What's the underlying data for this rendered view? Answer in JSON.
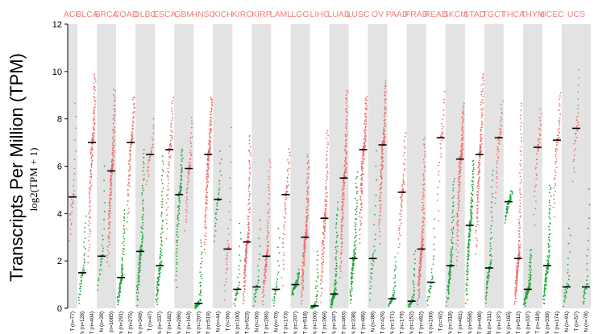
{
  "chart_data": {
    "type": "scatter",
    "title": "",
    "ylabel": "Transcripts Per Million (TPM)",
    "ylabel_sub": "log2(TPM + 1)",
    "ylim": [
      0,
      12
    ],
    "yticks": [
      0,
      2,
      4,
      6,
      8,
      10,
      12
    ],
    "colors": {
      "tumor": "#ee6a6a",
      "normal": "#1fa33a",
      "median": "#000000",
      "band": "#e3e3e3",
      "cancer_label": "#f08080"
    },
    "cancers": [
      {
        "name": "ACC",
        "groups": [
          {
            "label": "T (n=77)",
            "kind": "T",
            "n": 77,
            "median": 4.7,
            "min": 2.5,
            "max": 9.0
          }
        ]
      },
      {
        "name": "BLCA",
        "groups": [
          {
            "label": "N (n=128)",
            "kind": "N",
            "n": 128,
            "median": 1.5,
            "min": 0.0,
            "max": 4.0
          },
          {
            "label": "T (n=404)",
            "kind": "T",
            "n": 404,
            "median": 7.0,
            "min": 1.5,
            "max": 10.0
          }
        ]
      },
      {
        "name": "BRCA",
        "groups": [
          {
            "label": "N (n=28)",
            "kind": "N",
            "n": 28,
            "median": 2.2,
            "min": 0.5,
            "max": 6.3
          },
          {
            "label": "T (n=1085)",
            "kind": "T",
            "n": 1085,
            "median": 5.8,
            "min": 1.5,
            "max": 9.3
          }
        ]
      },
      {
        "name": "COAD",
        "groups": [
          {
            "label": "N (n=291)",
            "kind": "N",
            "n": 291,
            "median": 1.3,
            "min": 0.0,
            "max": 4.2
          },
          {
            "label": "T (n=275)",
            "kind": "T",
            "n": 275,
            "median": 7.0,
            "min": 3.0,
            "max": 9.0
          }
        ]
      },
      {
        "name": "DLBC",
        "groups": [
          {
            "label": "N (n=349)",
            "kind": "N",
            "n": 349,
            "median": 2.4,
            "min": 0.0,
            "max": 6.8
          },
          {
            "label": "T (n=47)",
            "kind": "T",
            "n": 47,
            "median": 6.5,
            "min": 5.0,
            "max": 8.1
          }
        ]
      },
      {
        "name": "ESCA",
        "groups": [
          {
            "label": "N (n=337)",
            "kind": "N",
            "n": 337,
            "median": 1.8,
            "min": 0.0,
            "max": 6.5
          },
          {
            "label": "T (n=182)",
            "kind": "T",
            "n": 182,
            "median": 6.7,
            "min": 2.5,
            "max": 9.0
          }
        ]
      },
      {
        "name": "GBM",
        "groups": [
          {
            "label": "N (n=286)",
            "kind": "N",
            "n": 286,
            "median": 4.8,
            "min": 0.5,
            "max": 6.8
          },
          {
            "label": "T (n=163)",
            "kind": "T",
            "n": 163,
            "median": 5.9,
            "min": 3.0,
            "max": 8.2
          }
        ]
      },
      {
        "name": "HNSC",
        "groups": [
          {
            "label": "N (n=207)",
            "kind": "N",
            "n": 207,
            "median": 0.2,
            "min": 0.0,
            "max": 3.0
          },
          {
            "label": "T (n=519)",
            "kind": "T",
            "n": 519,
            "median": 6.5,
            "min": 2.0,
            "max": 9.0
          }
        ]
      },
      {
        "name": "KICH",
        "groups": [
          {
            "label": "N (n=44)",
            "kind": "N",
            "n": 44,
            "median": 4.6,
            "min": 2.5,
            "max": 6.8
          },
          {
            "label": "T (n=66)",
            "kind": "T",
            "n": 66,
            "median": 2.5,
            "min": 0.0,
            "max": 8.0
          }
        ]
      },
      {
        "name": "KIRC",
        "groups": [
          {
            "label": "N (n=100)",
            "kind": "N",
            "n": 100,
            "median": 0.8,
            "min": 0.0,
            "max": 3.8
          },
          {
            "label": "T (n=523)",
            "kind": "T",
            "n": 523,
            "median": 2.8,
            "min": 0.0,
            "max": 7.4
          }
        ]
      },
      {
        "name": "KIRP",
        "groups": [
          {
            "label": "N (n=60)",
            "kind": "N",
            "n": 60,
            "median": 0.9,
            "min": 0.0,
            "max": 4.0
          },
          {
            "label": "T (n=286)",
            "kind": "T",
            "n": 286,
            "median": 2.2,
            "min": 0.0,
            "max": 6.4
          }
        ]
      },
      {
        "name": "LAML",
        "groups": [
          {
            "label": "N (n=70)",
            "kind": "N",
            "n": 70,
            "median": 0.8,
            "min": 0.0,
            "max": 3.5
          },
          {
            "label": "T (n=173)",
            "kind": "T",
            "n": 173,
            "median": 4.8,
            "min": 0.5,
            "max": 6.8
          }
        ]
      },
      {
        "name": "LGG",
        "groups": [
          {
            "label": "N (n=207)",
            "kind": "N",
            "n": 207,
            "median": 1.0,
            "min": 0.5,
            "max": 1.6
          },
          {
            "label": "T (n=518)",
            "kind": "T",
            "n": 518,
            "median": 3.0,
            "min": 0.0,
            "max": 6.5
          }
        ]
      },
      {
        "name": "LIHC",
        "groups": [
          {
            "label": "N (n=160)",
            "kind": "N",
            "n": 160,
            "median": 0.1,
            "min": 0.0,
            "max": 2.5
          },
          {
            "label": "T (n=369)",
            "kind": "T",
            "n": 369,
            "median": 3.8,
            "min": 0.0,
            "max": 7.6
          }
        ]
      },
      {
        "name": "LUAD",
        "groups": [
          {
            "label": "N (n=347)",
            "kind": "N",
            "n": 347,
            "median": 0.6,
            "min": 0.0,
            "max": 4.5
          },
          {
            "label": "T (n=483)",
            "kind": "T",
            "n": 483,
            "median": 5.5,
            "min": 1.0,
            "max": 9.3
          }
        ]
      },
      {
        "name": "LUSC",
        "groups": [
          {
            "label": "N (n=338)",
            "kind": "N",
            "n": 338,
            "median": 2.1,
            "min": 0.0,
            "max": 5.8
          },
          {
            "label": "T (n=486)",
            "kind": "T",
            "n": 486,
            "median": 6.7,
            "min": 2.5,
            "max": 9.0
          }
        ]
      },
      {
        "name": "OV",
        "groups": [
          {
            "label": "N (n=88)",
            "kind": "N",
            "n": 88,
            "median": 2.1,
            "min": 0.0,
            "max": 7.0
          },
          {
            "label": "T (n=426)",
            "kind": "T",
            "n": 426,
            "median": 6.9,
            "min": 2.5,
            "max": 9.6
          }
        ]
      },
      {
        "name": "PAAD",
        "groups": [
          {
            "label": "N (n=171)",
            "kind": "N",
            "n": 171,
            "median": 0.4,
            "min": 0.0,
            "max": 2.2
          },
          {
            "label": "T (n=179)",
            "kind": "T",
            "n": 179,
            "median": 4.9,
            "min": 2.0,
            "max": 7.5
          }
        ]
      },
      {
        "name": "PRAD",
        "groups": [
          {
            "label": "N (n=152)",
            "kind": "N",
            "n": 152,
            "median": 0.3,
            "min": 0.0,
            "max": 2.5
          },
          {
            "label": "T (n=492)",
            "kind": "T",
            "n": 492,
            "median": 2.5,
            "min": 0.0,
            "max": 7.3
          }
        ]
      },
      {
        "name": "READ",
        "groups": [
          {
            "label": "N (n=100)",
            "kind": "N",
            "n": 100,
            "median": 1.1,
            "min": 0.0,
            "max": 3.9
          },
          {
            "label": "T (n=92)",
            "kind": "T",
            "n": 92,
            "median": 7.2,
            "min": 3.0,
            "max": 9.3
          }
        ]
      },
      {
        "name": "SKCM",
        "groups": [
          {
            "label": "N (n=318)",
            "kind": "N",
            "n": 318,
            "median": 1.8,
            "min": 0.0,
            "max": 5.6
          },
          {
            "label": "T (n=461)",
            "kind": "T",
            "n": 461,
            "median": 6.3,
            "min": 1.5,
            "max": 8.7
          }
        ]
      },
      {
        "name": "STAD",
        "groups": [
          {
            "label": "N (n=558)",
            "kind": "N",
            "n": 558,
            "median": 3.5,
            "min": 0.0,
            "max": 6.3
          },
          {
            "label": "T (n=408)",
            "kind": "T",
            "n": 408,
            "median": 6.5,
            "min": 2.0,
            "max": 10.0
          }
        ]
      },
      {
        "name": "TGCT",
        "groups": [
          {
            "label": "N (n=211)",
            "kind": "N",
            "n": 211,
            "median": 1.7,
            "min": 0.0,
            "max": 6.0
          },
          {
            "label": "T (n=137)",
            "kind": "T",
            "n": 137,
            "median": 7.2,
            "min": 4.0,
            "max": 8.8
          }
        ]
      },
      {
        "name": "THCA",
        "groups": [
          {
            "label": "N (n=165)",
            "kind": "N",
            "n": 165,
            "median": 4.5,
            "min": 3.5,
            "max": 5.0
          },
          {
            "label": "T (n=512)",
            "kind": "T",
            "n": 512,
            "median": 2.1,
            "min": 0.0,
            "max": 8.8
          }
        ]
      },
      {
        "name": "THYM",
        "groups": [
          {
            "label": "N (n=337)",
            "kind": "N",
            "n": 337,
            "median": 0.8,
            "min": 0.0,
            "max": 2.5
          },
          {
            "label": "T (n=118)",
            "kind": "T",
            "n": 118,
            "median": 6.8,
            "min": 3.0,
            "max": 8.5
          }
        ]
      },
      {
        "name": "UCEC",
        "groups": [
          {
            "label": "N (n=339)",
            "kind": "N",
            "n": 339,
            "median": 1.8,
            "min": 0.0,
            "max": 5.3
          },
          {
            "label": "T (n=174)",
            "kind": "T",
            "n": 174,
            "median": 7.1,
            "min": 3.5,
            "max": 9.2
          }
        ]
      },
      {
        "name": "UCS",
        "groups": [
          {
            "label": "N (n=91)",
            "kind": "N",
            "n": 91,
            "median": 0.9,
            "min": 0.0,
            "max": 3.6
          },
          {
            "label": "T (n=57)",
            "kind": "T",
            "n": 57,
            "median": 7.6,
            "min": 5.0,
            "max": 10.3
          },
          {
            "label": "N (n=78)",
            "kind": "N",
            "n": 78,
            "median": 0.9,
            "min": 0.0,
            "max": 5.3
          }
        ]
      }
    ]
  }
}
